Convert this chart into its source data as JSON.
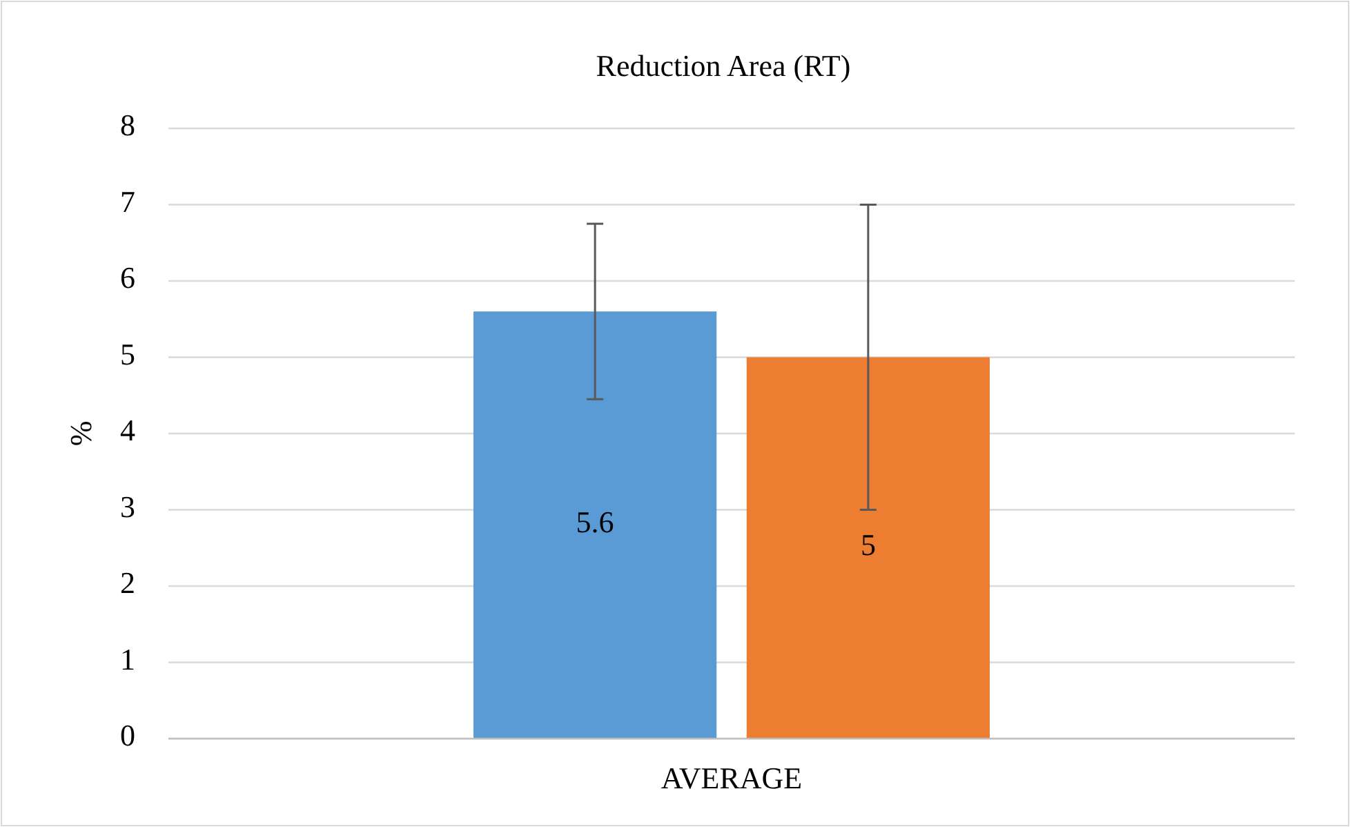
{
  "chart_data": {
    "type": "bar",
    "title": "Reduction Area (RT)",
    "ylabel": "%",
    "categories": [
      "AVERAGE"
    ],
    "series": [
      {
        "color": "#5b9bd5",
        "values": [
          5.6
        ],
        "errors": [
          [
            4.45,
            6.75
          ]
        ]
      },
      {
        "color": "#ed7d31",
        "values": [
          5
        ],
        "errors": [
          [
            3,
            7
          ]
        ]
      }
    ],
    "ylim": [
      0,
      8
    ],
    "yticks": [
      0,
      1,
      2,
      3,
      4,
      5,
      6,
      7,
      8
    ],
    "grid": "y",
    "data_labels": true
  }
}
